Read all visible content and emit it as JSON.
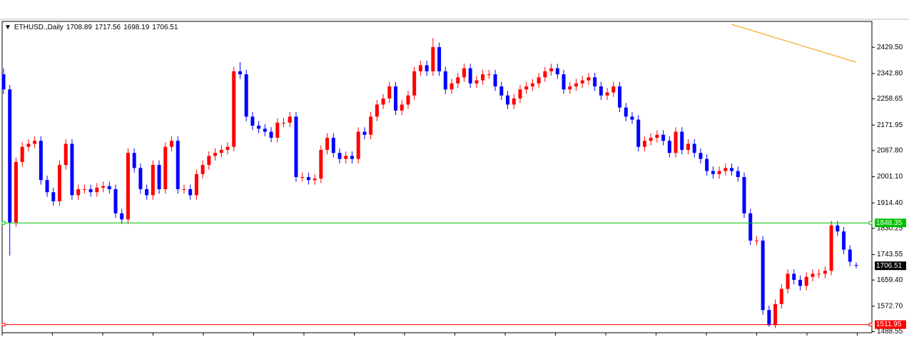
{
  "chart_data": {
    "type": "candlestick",
    "title": "ETHUSD.,Daily",
    "header_values": [
      1708.89,
      1717.56,
      1698.19,
      1706.51
    ],
    "open": [
      2340,
      2290,
      1850,
      2050,
      2100,
      2110,
      2120,
      1990,
      1950,
      1920,
      2040,
      2110,
      1940,
      1960,
      1960,
      1950,
      1965,
      1970,
      1960,
      1880,
      1860,
      2080,
      2030,
      1960,
      1940,
      2040,
      1960,
      2100,
      2120,
      1960,
      1960,
      1940,
      2010,
      2040,
      2070,
      2080,
      2090,
      2100,
      2350,
      2340,
      2200,
      2170,
      2160,
      2150,
      2130,
      2180,
      2180,
      2200,
      2000,
      2000,
      1990,
      1995,
      2090,
      2130,
      2080,
      2060,
      2070,
      2060,
      2150,
      2140,
      2200,
      2240,
      2260,
      2300,
      2220,
      2240,
      2270,
      2350,
      2370,
      2350,
      2430,
      2350,
      2290,
      2310,
      2330,
      2360,
      2310,
      2320,
      2340,
      2340,
      2300,
      2270,
      2240,
      2260,
      2290,
      2300,
      2310,
      2330,
      2350,
      2360,
      2340,
      2290,
      2300,
      2310,
      2320,
      2330,
      2300,
      2270,
      2280,
      2300,
      2230,
      2200,
      2190,
      2100,
      2120,
      2130,
      2140,
      2120,
      2080,
      2150,
      2090,
      2110,
      2080,
      2060,
      2020,
      2010,
      2020,
      2030,
      2020,
      2000,
      1880,
      1790,
      1790,
      1560,
      1510,
      1580,
      1630,
      1680,
      1660,
      1640,
      1670,
      1680,
      1680,
      1690,
      1840,
      1820,
      1760,
      1708.89
    ],
    "high": [
      2360,
      2305,
      2065,
      2115,
      2125,
      2135,
      2135,
      2005,
      1965,
      2055,
      2125,
      2125,
      1975,
      1975,
      1975,
      1980,
      1985,
      1985,
      1975,
      1895,
      2095,
      2095,
      2045,
      1975,
      2055,
      2055,
      2115,
      2135,
      2135,
      1975,
      1975,
      2025,
      2055,
      2085,
      2095,
      2105,
      2115,
      2365,
      2380,
      2355,
      2215,
      2185,
      2175,
      2165,
      2195,
      2195,
      2215,
      2215,
      2015,
      2015,
      2010,
      2105,
      2145,
      2145,
      2095,
      2085,
      2085,
      2165,
      2165,
      2215,
      2255,
      2275,
      2315,
      2315,
      2255,
      2285,
      2365,
      2385,
      2385,
      2460,
      2445,
      2365,
      2325,
      2345,
      2375,
      2375,
      2335,
      2355,
      2355,
      2355,
      2315,
      2285,
      2275,
      2305,
      2315,
      2325,
      2345,
      2365,
      2375,
      2375,
      2355,
      2315,
      2325,
      2335,
      2345,
      2345,
      2315,
      2295,
      2315,
      2315,
      2245,
      2215,
      2205,
      2135,
      2145,
      2155,
      2155,
      2135,
      2165,
      2165,
      2125,
      2125,
      2095,
      2075,
      2035,
      2035,
      2045,
      2045,
      2035,
      2015,
      1895,
      1805,
      1805,
      1575,
      1595,
      1645,
      1695,
      1695,
      1675,
      1685,
      1695,
      1695,
      1705,
      1855,
      1855,
      1835,
      1775,
      1717.56
    ],
    "low": [
      2275,
      1740,
      1835,
      2035,
      2085,
      2095,
      1975,
      1935,
      1905,
      1905,
      2025,
      1925,
      1925,
      1945,
      1935,
      1935,
      1950,
      1945,
      1865,
      1845,
      1845,
      2015,
      1945,
      1925,
      1925,
      1945,
      1945,
      2085,
      1945,
      1945,
      1925,
      1925,
      1995,
      2025,
      2055,
      2065,
      2075,
      2085,
      2325,
      2185,
      2155,
      2145,
      2135,
      2115,
      2115,
      2165,
      2165,
      1985,
      1985,
      1975,
      1975,
      1980,
      2075,
      2065,
      2045,
      2045,
      2045,
      2045,
      2125,
      2125,
      2185,
      2225,
      2245,
      2205,
      2205,
      2225,
      2255,
      2335,
      2335,
      2335,
      2335,
      2275,
      2275,
      2295,
      2315,
      2295,
      2295,
      2305,
      2325,
      2285,
      2255,
      2225,
      2225,
      2245,
      2275,
      2285,
      2295,
      2315,
      2335,
      2325,
      2275,
      2275,
      2285,
      2295,
      2305,
      2285,
      2255,
      2255,
      2265,
      2215,
      2185,
      2175,
      2085,
      2085,
      2105,
      2115,
      2105,
      2065,
      2065,
      2075,
      2075,
      2065,
      2045,
      2005,
      1995,
      1995,
      2005,
      2005,
      1985,
      1865,
      1775,
      1775,
      1545,
      1505,
      1500,
      1565,
      1615,
      1645,
      1625,
      1625,
      1655,
      1665,
      1665,
      1675,
      1805,
      1745,
      1705,
      1698.19
    ],
    "close": [
      2290,
      1850,
      2050,
      2100,
      2110,
      2120,
      1990,
      1950,
      1920,
      2040,
      2110,
      1940,
      1960,
      1960,
      1950,
      1965,
      1970,
      1960,
      1880,
      1860,
      2080,
      2030,
      1960,
      1940,
      2040,
      1960,
      2100,
      2120,
      1960,
      1960,
      1940,
      2010,
      2040,
      2070,
      2080,
      2090,
      2100,
      2350,
      2340,
      2200,
      2170,
      2160,
      2150,
      2130,
      2180,
      2180,
      2200,
      2000,
      2000,
      1990,
      1995,
      2090,
      2130,
      2080,
      2060,
      2070,
      2060,
      2150,
      2140,
      2200,
      2240,
      2260,
      2300,
      2220,
      2240,
      2270,
      2350,
      2370,
      2350,
      2430,
      2350,
      2290,
      2310,
      2330,
      2360,
      2310,
      2320,
      2340,
      2340,
      2300,
      2270,
      2240,
      2260,
      2290,
      2300,
      2310,
      2330,
      2350,
      2360,
      2340,
      2290,
      2300,
      2310,
      2320,
      2330,
      2300,
      2270,
      2280,
      2300,
      2230,
      2200,
      2190,
      2100,
      2120,
      2130,
      2140,
      2120,
      2080,
      2150,
      2090,
      2110,
      2080,
      2060,
      2020,
      2010,
      2020,
      2030,
      2020,
      2000,
      1880,
      1790,
      1790,
      1560,
      1510,
      1580,
      1630,
      1680,
      1660,
      1640,
      1670,
      1680,
      1680,
      1690,
      1840,
      1820,
      1760,
      1720,
      1706.51
    ],
    "up_color": "#ff0000",
    "down_color": "#0000ff",
    "ma": {
      "color": "#f5a623",
      "values": [
        null,
        null,
        null,
        null,
        null,
        null,
        null,
        null,
        null,
        null,
        null,
        null,
        null,
        null,
        null,
        null,
        null,
        null,
        null,
        null,
        null,
        null,
        null,
        null,
        null,
        null,
        null,
        null,
        null,
        null,
        null,
        null,
        null,
        null,
        null,
        null,
        null,
        null,
        null,
        null,
        null,
        null,
        null,
        null,
        null,
        null,
        null,
        null,
        null,
        null,
        null,
        null,
        null,
        null,
        null,
        null,
        null,
        null,
        null,
        null,
        null,
        null,
        null,
        null,
        null,
        null,
        null,
        null,
        null,
        null,
        null,
        null,
        null,
        null,
        null,
        null,
        null,
        null,
        null,
        null,
        null,
        null,
        null,
        null,
        null,
        null,
        null,
        null,
        null,
        null,
        null,
        null,
        null,
        null,
        null,
        null,
        null,
        null,
        null,
        null,
        null,
        null,
        null,
        null,
        null,
        null,
        null,
        null,
        null,
        null,
        null,
        null,
        null,
        null,
        null,
        null,
        null,
        2505,
        2499,
        2493,
        2487,
        2480,
        2474,
        2468,
        2461,
        2455,
        2449,
        2443,
        2436,
        2430,
        2424,
        2418,
        2411,
        2405,
        2399,
        2393,
        2386,
        2380
      ]
    },
    "levels": [
      {
        "value": 1848.35,
        "color": "#00c000"
      },
      {
        "value": 1511.95,
        "color": "#ff0000"
      }
    ],
    "current_price": 1706.51,
    "ylim": [
      1485,
      2515
    ],
    "yticks": [
      {
        "value": 2429.5,
        "label": "2429.50"
      },
      {
        "value": 2342.8,
        "label": "2342.80"
      },
      2258.65,
      2171.95,
      {
        "value": 2087.8,
        "label": "2087.80"
      },
      {
        "value": 2001.1,
        "label": "2001.10"
      },
      {
        "value": 1914.4,
        "label": "1914.40"
      },
      1830.25,
      1743.55,
      {
        "value": 1659.4,
        "label": "1659.40"
      },
      {
        "value": 1572.7,
        "label": "1572.70"
      },
      1488.55
    ]
  }
}
